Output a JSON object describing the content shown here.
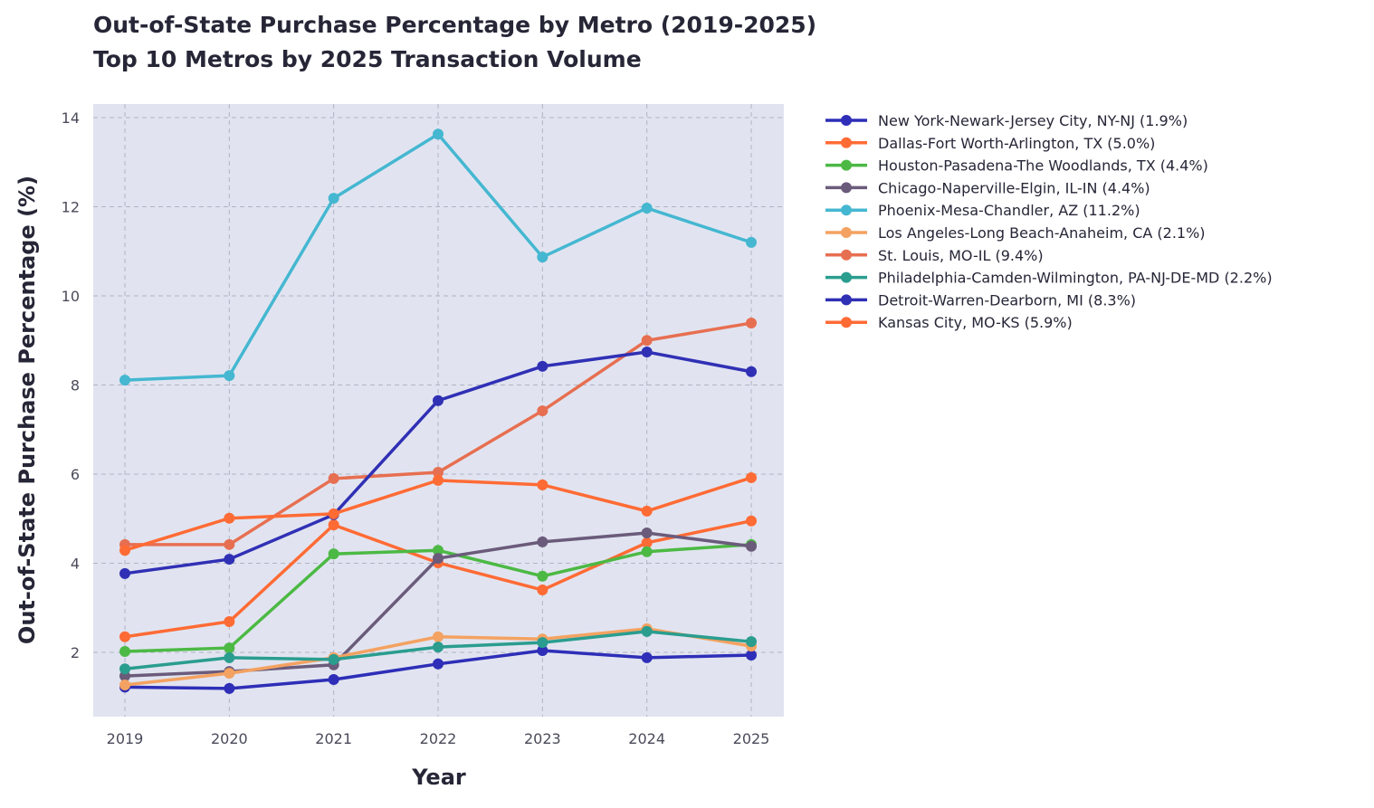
{
  "chart_data": {
    "type": "line",
    "title": "Out-of-State Purchase Percentage by Metro (2019-2025)",
    "subtitle": "Top 10 Metros by 2025 Transaction Volume",
    "xlabel": "Year",
    "ylabel": "Out-of-State Purchase Percentage (%)",
    "x": [
      2019,
      2020,
      2021,
      2022,
      2023,
      2024,
      2025
    ],
    "x_tick_labels": [
      "2019",
      "2020",
      "2021",
      "2022",
      "2023",
      "2024",
      "2025"
    ],
    "y_ticks": [
      2,
      4,
      6,
      8,
      10,
      12,
      14
    ],
    "y_tick_labels": [
      "2",
      "4",
      "6",
      "8",
      "10",
      "12",
      "14"
    ],
    "ylim": [
      0.55,
      14.3
    ],
    "xlim": [
      2018.7,
      2025.3
    ],
    "grid": true,
    "legend_placement": "outside-right",
    "series": [
      {
        "name": "New York-Newark-Jersey City, NY-NJ (1.9%)",
        "color": "#2e2eb8",
        "values": [
          1.22,
          1.19,
          1.39,
          1.74,
          2.04,
          1.88,
          1.94
        ]
      },
      {
        "name": "Dallas-Fort Worth-Arlington, TX (5.0%)",
        "color": "#ff6b35",
        "values": [
          2.35,
          2.69,
          4.86,
          4.01,
          3.4,
          4.46,
          4.95
        ]
      },
      {
        "name": "Houston-Pasadena-The Woodlands, TX (4.4%)",
        "color": "#4cb944",
        "values": [
          2.02,
          2.1,
          4.21,
          4.29,
          3.71,
          4.26,
          4.42
        ]
      },
      {
        "name": "Chicago-Naperville-Elgin, IL-IN (4.4%)",
        "color": "#6b5b7b",
        "values": [
          1.47,
          1.57,
          1.72,
          4.11,
          4.48,
          4.68,
          4.38
        ]
      },
      {
        "name": "Phoenix-Mesa-Chandler, AZ (11.2%)",
        "color": "#45b7d1",
        "values": [
          8.11,
          8.21,
          12.19,
          13.63,
          10.87,
          11.97,
          11.2
        ]
      },
      {
        "name": "Los Angeles-Long Beach-Anaheim, CA (2.1%)",
        "color": "#f4a261",
        "values": [
          1.27,
          1.53,
          1.88,
          2.35,
          2.3,
          2.53,
          2.14
        ]
      },
      {
        "name": "St. Louis, MO-IL (9.4%)",
        "color": "#e76f51",
        "values": [
          4.42,
          4.42,
          5.9,
          6.04,
          7.42,
          9.0,
          9.39
        ]
      },
      {
        "name": "Philadelphia-Camden-Wilmington, PA-NJ-DE-MD (2.2%)",
        "color": "#2a9d8f",
        "values": [
          1.63,
          1.88,
          1.84,
          2.12,
          2.22,
          2.47,
          2.24
        ]
      },
      {
        "name": "Detroit-Warren-Dearborn, MI (8.3%)",
        "color": "#3030b5",
        "values": [
          3.77,
          4.09,
          5.09,
          7.65,
          8.42,
          8.74,
          8.3
        ]
      },
      {
        "name": "Kansas City, MO-KS (5.9%)",
        "color": "#ff6b35",
        "values": [
          4.29,
          5.01,
          5.11,
          5.86,
          5.76,
          5.17,
          5.92
        ]
      }
    ]
  }
}
